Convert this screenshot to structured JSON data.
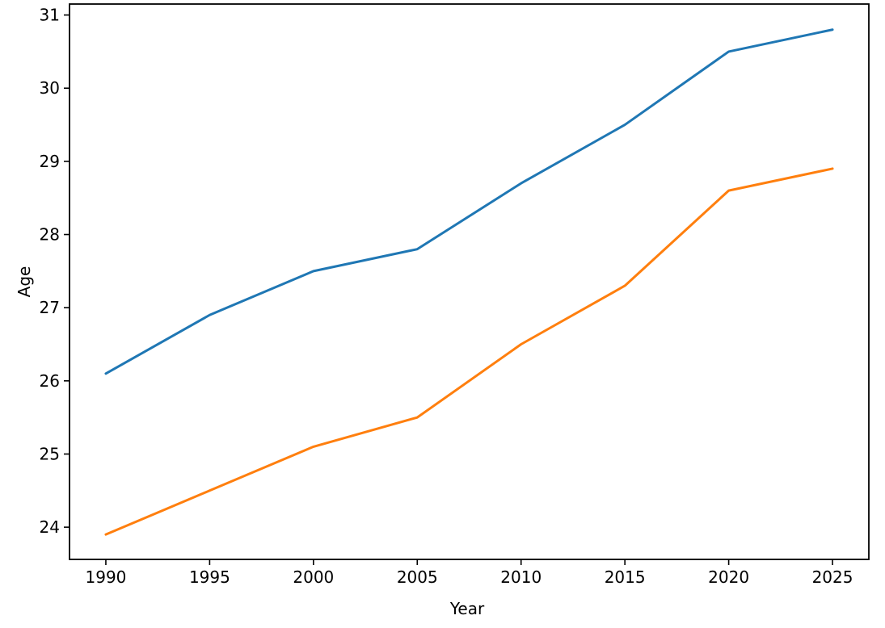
{
  "chart_data": {
    "type": "line",
    "title": "",
    "xlabel": "Year",
    "ylabel": "Age",
    "x": [
      1990,
      1995,
      2000,
      2005,
      2010,
      2015,
      2020,
      2025
    ],
    "series": [
      {
        "id": "blue-line",
        "color": "#1f77b4",
        "values": [
          26.1,
          26.9,
          27.5,
          27.8,
          28.7,
          29.5,
          30.5,
          30.8
        ]
      },
      {
        "id": "orange-line",
        "color": "#ff7f0e",
        "values": [
          23.9,
          24.5,
          25.1,
          25.5,
          26.5,
          27.3,
          28.6,
          28.9
        ]
      }
    ],
    "xticks": [
      "1990",
      "1995",
      "2000",
      "2005",
      "2010",
      "2015",
      "2020",
      "2025"
    ],
    "xtick_values": [
      1990,
      1995,
      2000,
      2005,
      2010,
      2015,
      2020,
      2025
    ],
    "yticks": [
      "24",
      "25",
      "26",
      "27",
      "28",
      "29",
      "30",
      "31"
    ],
    "ytick_values": [
      24,
      25,
      26,
      27,
      28,
      29,
      30,
      31
    ],
    "xlim": [
      1988.25,
      2026.75
    ],
    "ylim": [
      23.56,
      31.15
    ],
    "grid": false,
    "legend": "none",
    "background": "#ffffff",
    "axis_color": "#000000",
    "text_color": "#000000"
  }
}
